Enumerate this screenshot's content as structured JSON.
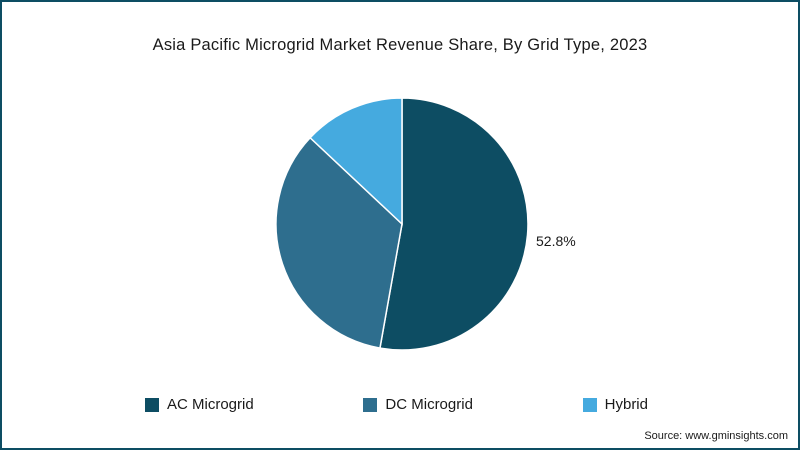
{
  "chart_data": {
    "type": "pie",
    "title": "Asia Pacific Microgrid Market Revenue Share, By Grid Type, 2023",
    "categories": [
      "AC Microgrid",
      "DC Microgrid",
      "Hybrid"
    ],
    "values": [
      52.8,
      34.2,
      13.0
    ],
    "colors": [
      "#0d4d63",
      "#2e6e8e",
      "#45aadf"
    ],
    "start_angle_deg": 0,
    "direction": "clockwise",
    "legend_position": "bottom",
    "annotations": [
      {
        "text": "52.8%",
        "target": "AC Microgrid",
        "position": "right-of-pie"
      }
    ]
  },
  "source": {
    "label": "Source: www.gminsights.com"
  }
}
